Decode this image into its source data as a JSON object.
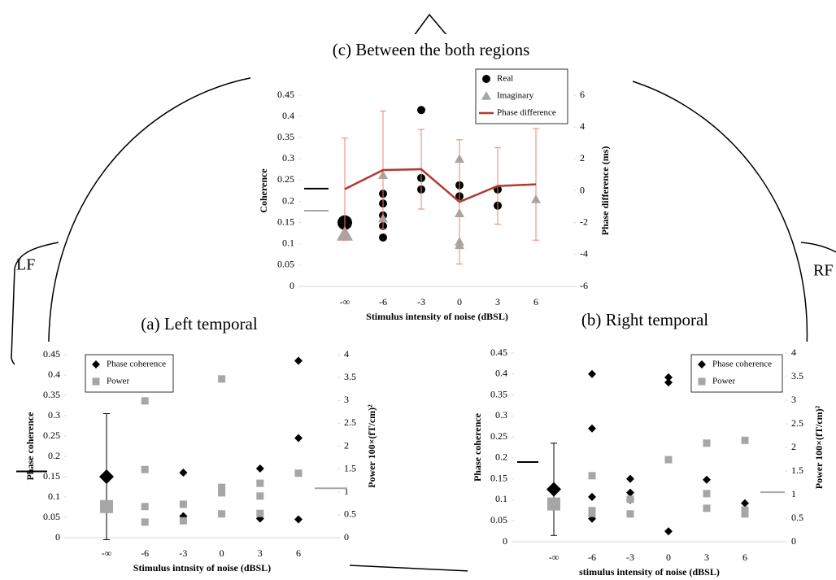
{
  "head_labels": {
    "left": "LF",
    "right": "RF"
  },
  "chart_data": [
    {
      "type": "scatter",
      "title": "(c) Between the both regions",
      "xlabel": "Stimulus intensity of noise (dBSL)",
      "ylabel": "Coherence",
      "y2label": "Phase difference (ms)",
      "categories": [
        "-∞",
        "-6",
        "-3",
        "0",
        "3",
        "6"
      ],
      "ylim": [
        0,
        0.45
      ],
      "yticks": [
        0,
        0.05,
        0.1,
        0.15,
        0.2,
        0.25,
        0.3,
        0.35,
        0.4,
        0.45
      ],
      "y2lim": [
        -6,
        6
      ],
      "y2ticks": [
        -6,
        -4,
        -2,
        0,
        2,
        4,
        6
      ],
      "series": [
        {
          "name": "Real",
          "marker": "circle",
          "color": "#000000",
          "x": [
            "-∞",
            "-6",
            "-6",
            "-6",
            "-6",
            "-6",
            "-3",
            "-3",
            "-3",
            "0",
            "0",
            "3",
            "3"
          ],
          "values": [
            0.15,
            0.218,
            0.195,
            0.167,
            0.142,
            0.115,
            0.415,
            0.255,
            0.228,
            0.238,
            0.212,
            0.228,
            0.19
          ]
        },
        {
          "name": "Imaginary",
          "marker": "triangle",
          "color": "#a6a6a6",
          "x": [
            "-∞",
            "-6",
            "-6",
            "0",
            "0",
            "0",
            "0",
            "6"
          ],
          "values": [
            0.123,
            0.262,
            0.16,
            0.3,
            0.172,
            0.105,
            0.097,
            0.205
          ]
        },
        {
          "name": "Phase difference",
          "marker": "line",
          "color": "#b03a2e",
          "axis": "y2",
          "error_color": "#f08070",
          "x": [
            "-∞",
            "-6",
            "-3",
            "0",
            "3",
            "6"
          ],
          "values": [
            0.1,
            1.3,
            1.35,
            -0.7,
            0.3,
            0.4
          ],
          "errors": [
            3.2,
            3.7,
            2.5,
            3.9,
            2.4,
            3.5
          ]
        }
      ],
      "hlines": [
        {
          "value": 0.23,
          "color": "#000000",
          "side": "left"
        },
        {
          "value": 0.178,
          "color": "#a6a6a6",
          "side": "left"
        }
      ]
    },
    {
      "type": "scatter",
      "title": "(a) Left temporal",
      "xlabel": "Stimulus intnsity of noise (dBSL)",
      "ylabel": "Phase coherence",
      "y2label": "Power 100×(fT/cm)²",
      "categories": [
        "-∞",
        "-6",
        "-3",
        "0",
        "3",
        "6"
      ],
      "ylim": [
        0,
        0.45
      ],
      "yticks": [
        0,
        0.05,
        0.1,
        0.15,
        0.2,
        0.25,
        0.3,
        0.35,
        0.4,
        0.45
      ],
      "y2lim": [
        0,
        4
      ],
      "y2ticks": [
        0,
        0.5,
        1,
        1.5,
        2,
        2.5,
        3,
        3.5,
        4
      ],
      "series": [
        {
          "name": "Phase coherence",
          "marker": "diamond",
          "color": "#000000",
          "x": [
            "-∞",
            "-3",
            "-3",
            "3",
            "3",
            "6",
            "6",
            "6"
          ],
          "values": [
            0.15,
            0.16,
            0.053,
            0.17,
            0.047,
            0.435,
            0.245,
            0.045
          ],
          "errors": [
            0.155,
            null,
            null,
            null,
            null,
            null,
            null,
            null
          ]
        },
        {
          "name": "Power",
          "marker": "square",
          "color": "#a6a6a6",
          "axis": "y2",
          "x": [
            "-∞",
            "-6",
            "-6",
            "-6",
            "-6",
            "-3",
            "-3",
            "0",
            "0",
            "0",
            "0",
            "3",
            "3",
            "3",
            "6"
          ],
          "values": [
            0.68,
            2.99,
            1.49,
            0.68,
            0.34,
            0.73,
            0.37,
            3.47,
            1.1,
            0.98,
            0.52,
            1.19,
            0.91,
            0.53,
            1.41
          ]
        }
      ],
      "hlines": [
        {
          "value": 0.163,
          "color": "#000000",
          "side": "left"
        },
        {
          "value": 1.08,
          "color": "#a6a6a6",
          "side": "right",
          "axis": "y2"
        }
      ]
    },
    {
      "type": "scatter",
      "title": "(b) Right temporal",
      "xlabel": "stimulus intensity of noise (dBSL)",
      "ylabel": "Phase coherence",
      "y2label": "Power 100×(fT/cm)²",
      "categories": [
        "-∞",
        "-6",
        "-3",
        "0",
        "3",
        "6"
      ],
      "ylim": [
        0,
        0.45
      ],
      "yticks": [
        0,
        0.05,
        0.1,
        0.15,
        0.2,
        0.25,
        0.3,
        0.35,
        0.4,
        0.45
      ],
      "y2lim": [
        0,
        4
      ],
      "y2ticks": [
        0,
        0.5,
        1,
        1.5,
        2,
        2.5,
        3,
        3.5,
        4
      ],
      "series": [
        {
          "name": "Phase coherence",
          "marker": "diamond",
          "color": "#000000",
          "x": [
            "-∞",
            "-6",
            "-6",
            "-6",
            "-6",
            "-3",
            "-3",
            "-3",
            "0",
            "0",
            "0",
            "3",
            "6"
          ],
          "values": [
            0.125,
            0.4,
            0.27,
            0.107,
            0.055,
            0.15,
            0.117,
            0.1,
            0.392,
            0.38,
            0.025,
            0.148,
            0.092
          ],
          "errors": [
            0.11,
            null,
            null,
            null,
            null,
            null,
            null,
            null,
            null,
            null,
            null,
            null,
            null
          ]
        },
        {
          "name": "Power",
          "marker": "square",
          "color": "#a6a6a6",
          "axis": "y2",
          "x": [
            "-∞",
            "-6",
            "-6",
            "-6",
            "-3",
            "-3",
            "0",
            "3",
            "3",
            "3",
            "6",
            "6",
            "6"
          ],
          "values": [
            0.8,
            1.4,
            0.66,
            0.6,
            0.9,
            0.59,
            1.74,
            2.09,
            1.02,
            0.71,
            2.15,
            0.67,
            0.59
          ]
        }
      ],
      "hlines": [
        {
          "value": 0.19,
          "color": "#000000",
          "side": "left"
        },
        {
          "value": 1.05,
          "color": "#a6a6a6",
          "side": "right",
          "axis": "y2"
        }
      ]
    }
  ]
}
